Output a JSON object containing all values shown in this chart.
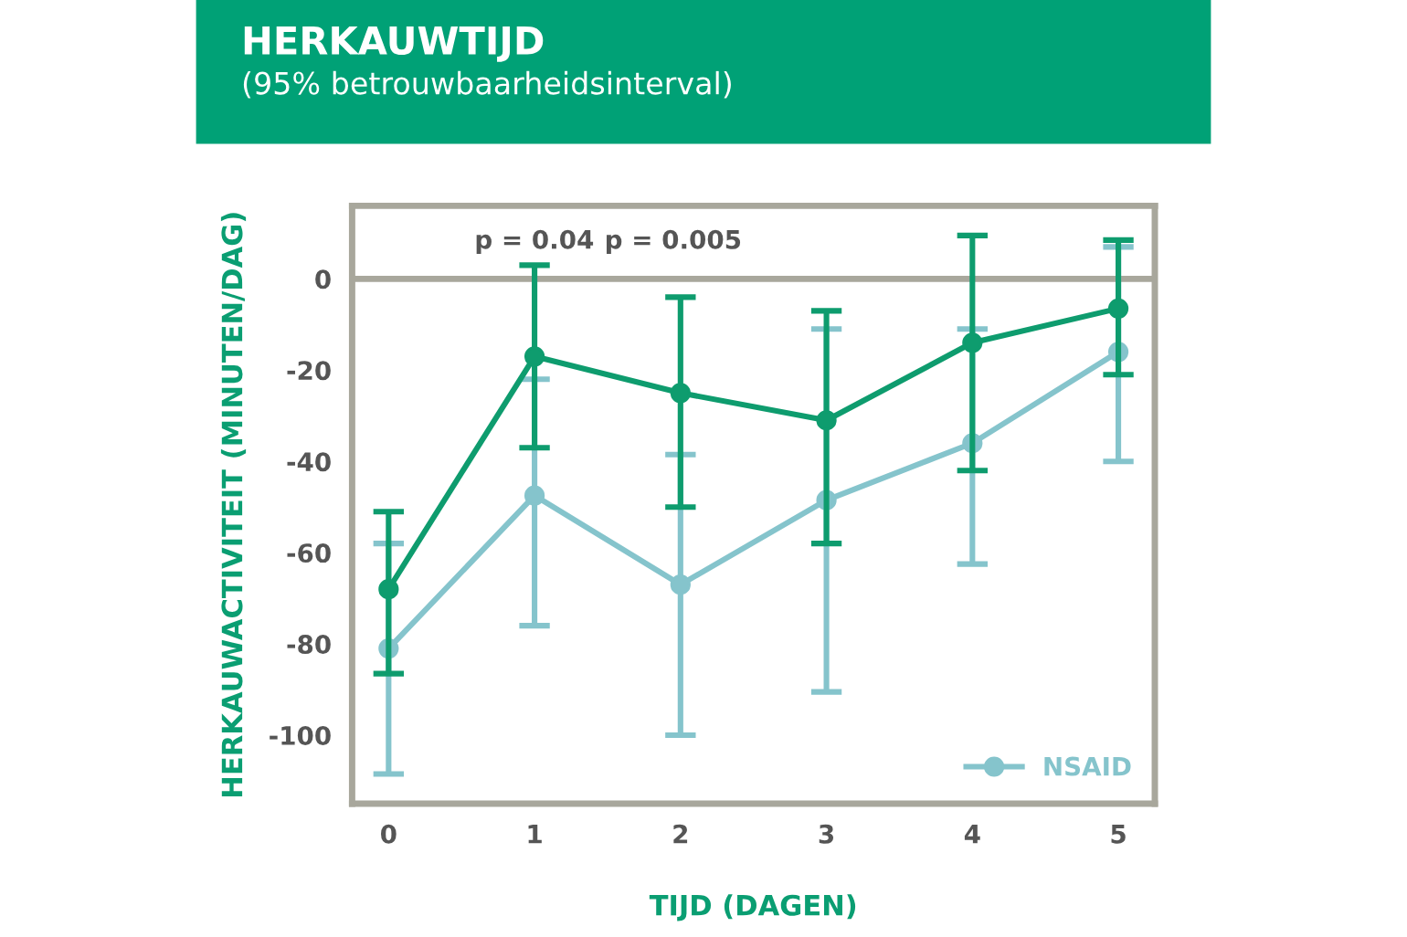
{
  "chart_data": {
    "type": "line",
    "title": "HERKAUWTIJD",
    "subtitle": "(95% betrouwbaarheidsinterval)",
    "xlabel": "TIJD (DAGEN)",
    "ylabel": "HERKAUWACTIVITEIT (MINUTEN/DAG)",
    "x": [
      0,
      1,
      2,
      3,
      4,
      5
    ],
    "xlim": [
      -0.25,
      5.25
    ],
    "xticks": [
      0,
      1,
      2,
      3,
      4,
      5
    ],
    "ylim": [
      -115,
      16
    ],
    "yticks": [
      -100,
      -80,
      -60,
      -40,
      -20,
      0
    ],
    "series": [
      {
        "color": "#0e9c6e",
        "values": [
          -68,
          -17,
          -25,
          -31,
          -14,
          -6.5
        ],
        "errors": [
          [
            -86.5,
            -51
          ],
          [
            -37,
            3
          ],
          [
            -50,
            -4
          ],
          [
            -58,
            -7
          ],
          [
            -42,
            9.5
          ],
          [
            -21,
            8.5
          ]
        ]
      },
      {
        "name": "NSAID",
        "color": "#85c4cc",
        "values": [
          -81,
          -47.5,
          -67,
          -48.5,
          -36,
          -16
        ],
        "errors": [
          [
            -108.5,
            -58
          ],
          [
            -76,
            -22
          ],
          [
            -100,
            -38.5
          ],
          [
            -90.5,
            -11
          ],
          [
            -62.5,
            -11
          ],
          [
            -40,
            7
          ]
        ]
      }
    ],
    "ref_lines": [
      {
        "axis": "y",
        "value": 0,
        "color": "#a8a79c"
      }
    ],
    "annotations": [
      "p = 0.04",
      "p = 0.005"
    ],
    "marker": "circle",
    "legend": "bottom right",
    "grid": false
  }
}
